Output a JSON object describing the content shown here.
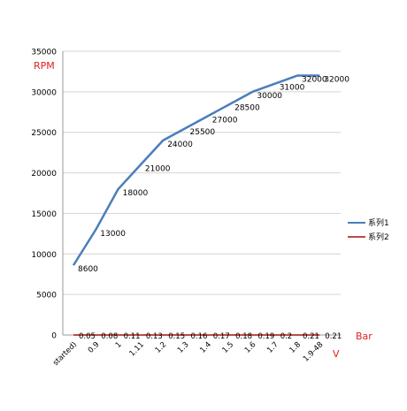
{
  "chart_data": {
    "type": "line",
    "categories": [
      "started)",
      "0.9",
      "1",
      "1.11",
      "1.2",
      "1.3",
      "1.4",
      "1.5",
      "1.6",
      "1.7",
      "1.8",
      "1.9-48"
    ],
    "series": [
      {
        "name": "系列1",
        "color": "#4a7ebb",
        "values": [
          8600,
          13000,
          18000,
          21000,
          24000,
          25500,
          27000,
          28500,
          30000,
          31000,
          32000,
          32000
        ],
        "labels": [
          "8600",
          "13000",
          "18000",
          "21000",
          "24000",
          "25500",
          "27000",
          "28500",
          "30000",
          "31000",
          "32000",
          "32000"
        ]
      },
      {
        "name": "系列2",
        "color": "#be4b48",
        "values": [
          0.05,
          0.08,
          0.11,
          0.13,
          0.15,
          0.16,
          0.17,
          0.18,
          0.19,
          0.2,
          0.21,
          0.21
        ],
        "labels": [
          "0.05",
          "0.08",
          "0.11",
          "0.13",
          "0.15",
          "0.16",
          "0.17",
          "0.18",
          "0.19",
          "0.2",
          "0.21",
          "0.21"
        ]
      }
    ],
    "y_ticks": [
      "0",
      "5000",
      "10000",
      "15000",
      "20000",
      "25000",
      "30000",
      "35000"
    ],
    "ylim": [
      0,
      35000
    ],
    "grid": true,
    "legend_position": "right",
    "annotations": {
      "y_unit": "RPM",
      "bar_unit": "Bar",
      "v_unit": "V"
    }
  }
}
